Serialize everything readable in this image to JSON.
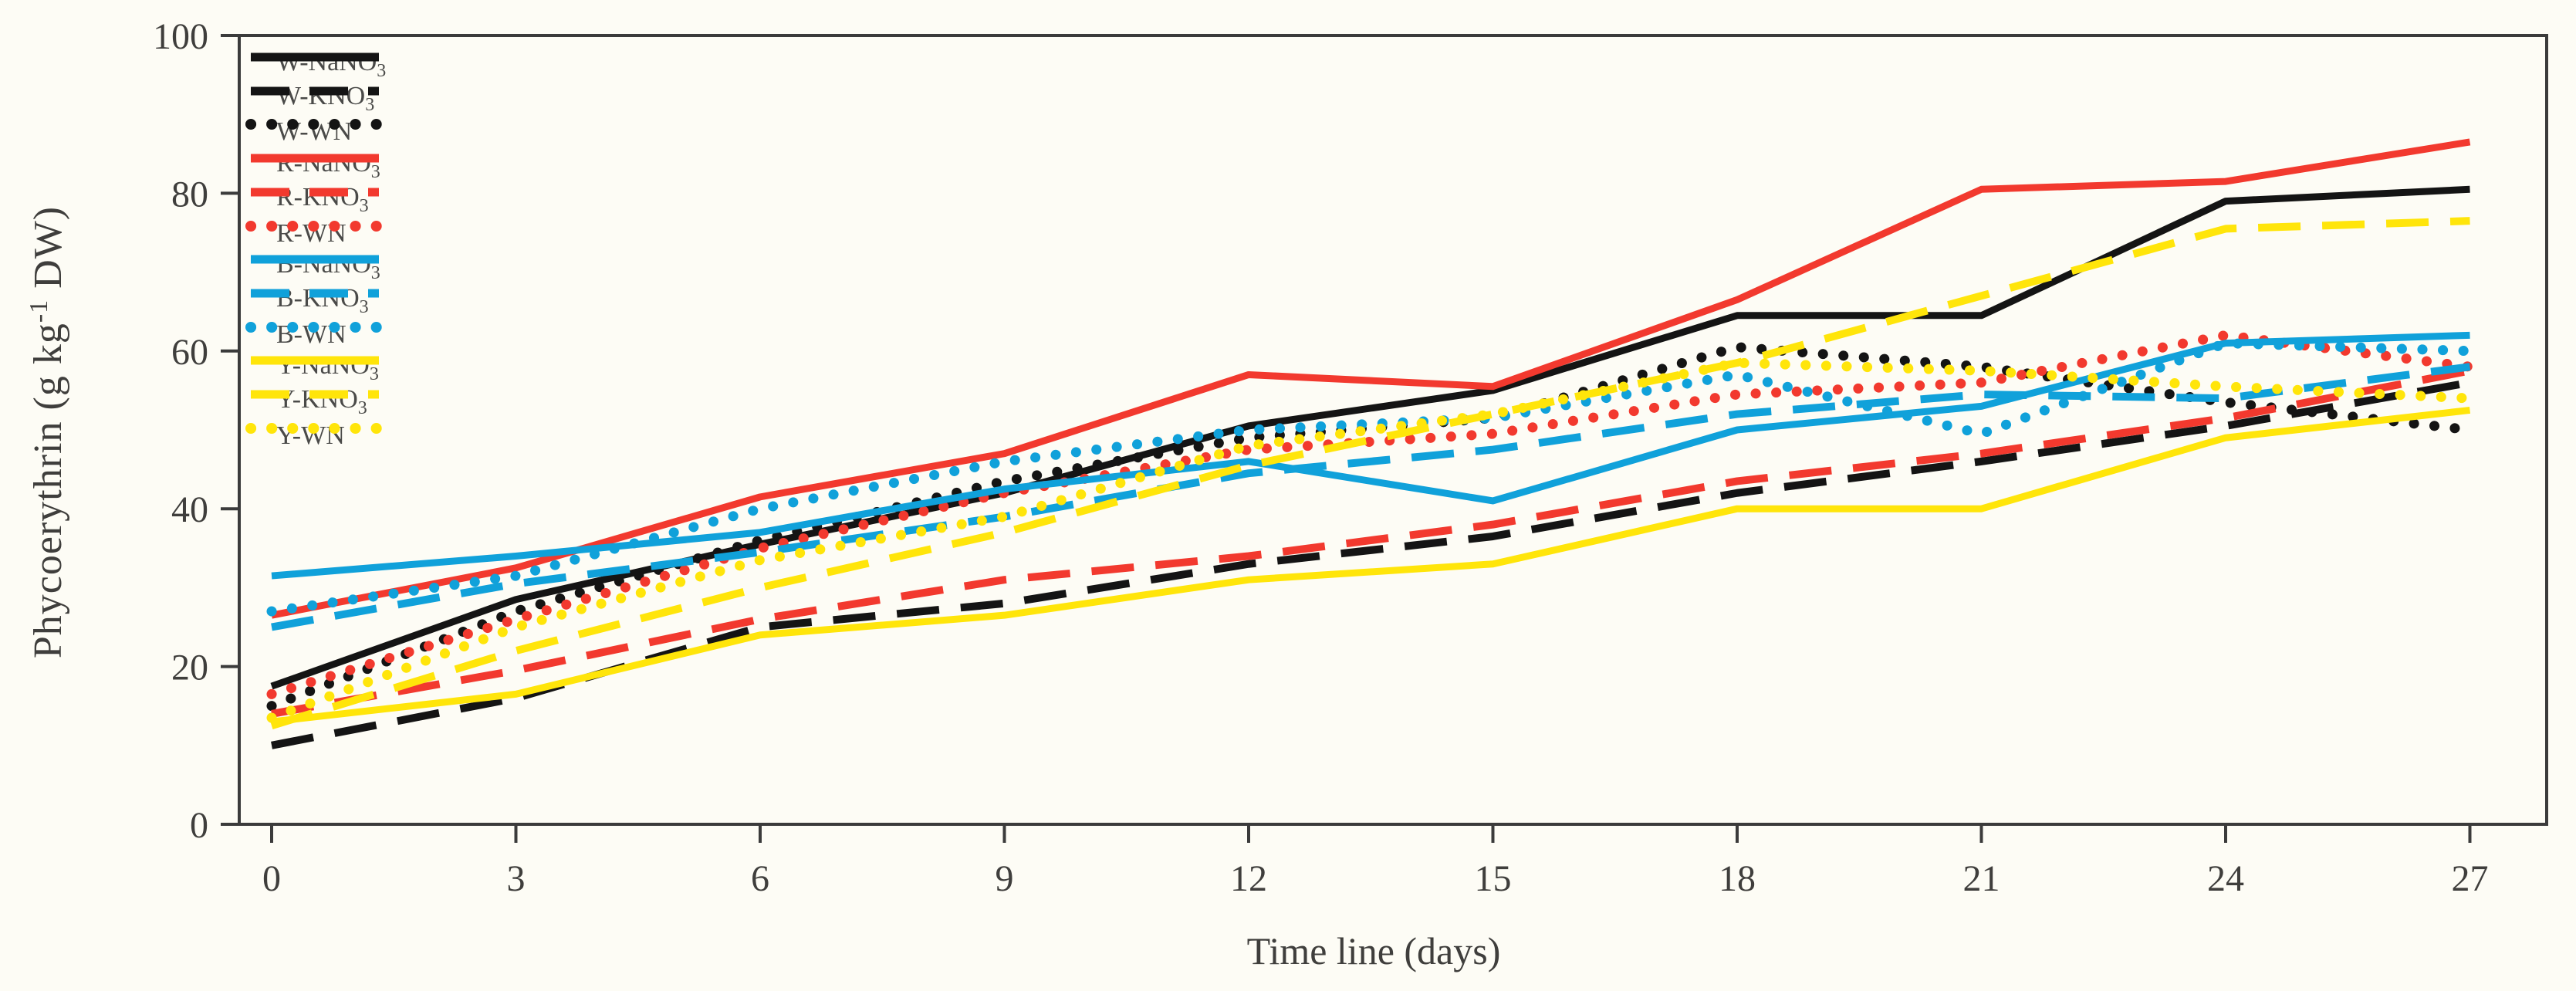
{
  "figure": {
    "background": "#fdfcf5",
    "frame_color": "#3b3b3b"
  },
  "y_axis": {
    "label": "Phycoerythrin  (g kg-1 DW)",
    "ticks": [
      0,
      20,
      40,
      60,
      80,
      100
    ]
  },
  "x_axis": {
    "label": "Time line (days)",
    "ticks": [
      0,
      3,
      6,
      9,
      12,
      15,
      18,
      21,
      24,
      27
    ]
  },
  "chart_data": {
    "type": "line",
    "title": "",
    "xlabel": "Time line (days)",
    "ylabel": "Phycoerythrin (g kg-1 DW)",
    "xlim": [
      0,
      27
    ],
    "ylim": [
      0,
      100
    ],
    "grid": false,
    "legend_position": "inside top-left",
    "x": [
      0,
      3,
      6,
      9,
      12,
      15,
      18,
      21,
      24,
      27
    ],
    "series": [
      {
        "name": "W-NaNO3",
        "color": "#141414",
        "style": "solid",
        "values": [
          17.5,
          28.5,
          35.5,
          42,
          50.5,
          55,
          64.5,
          64.5,
          79,
          80.5
        ]
      },
      {
        "name": "W-KNO3",
        "color": "#141414",
        "style": "dashed",
        "values": [
          10,
          16,
          25,
          28,
          33,
          36.5,
          42,
          46,
          50.5,
          56
        ]
      },
      {
        "name": "W-WN",
        "color": "#141414",
        "style": "dotted",
        "values": [
          15,
          27,
          36,
          43.5,
          49,
          51.5,
          60.5,
          58,
          53.5,
          50
        ]
      },
      {
        "name": "R-NaNO3",
        "color": "#f2392e",
        "style": "solid",
        "values": [
          26.5,
          32.5,
          41.5,
          47,
          57,
          55.5,
          66.5,
          80.5,
          81.5,
          86.5
        ]
      },
      {
        "name": "R-KNO3",
        "color": "#f2392e",
        "style": "dashed",
        "values": [
          14,
          19.5,
          26,
          31,
          34,
          38,
          43.5,
          47,
          51.5,
          57.5
        ]
      },
      {
        "name": "R-WN",
        "color": "#f2392e",
        "style": "dotted",
        "values": [
          16.5,
          26,
          35,
          42,
          47.5,
          49.5,
          54.5,
          56,
          62,
          58
        ]
      },
      {
        "name": "B-NaNO3",
        "color": "#10a1da",
        "style": "solid",
        "values": [
          31.5,
          34,
          37,
          42.5,
          46,
          41,
          50,
          53,
          61,
          62
        ]
      },
      {
        "name": "B-KNO3",
        "color": "#10a1da",
        "style": "dashed",
        "values": [
          25,
          30.5,
          34.5,
          39,
          44.5,
          47.5,
          52,
          54.5,
          54,
          58
        ]
      },
      {
        "name": "B-WN",
        "color": "#10a1da",
        "style": "dotted",
        "values": [
          27,
          31.5,
          40,
          46,
          50,
          51.5,
          57,
          49.5,
          61,
          60
        ]
      },
      {
        "name": "Y-NaNO3",
        "color": "#ffe50a",
        "style": "solid",
        "values": [
          13,
          16.5,
          24,
          26.5,
          31,
          33,
          40,
          40,
          49,
          52.5
        ]
      },
      {
        "name": "Y-KNO3",
        "color": "#ffe50a",
        "style": "dashed",
        "values": [
          12.5,
          22,
          30,
          37,
          45.5,
          52,
          58.5,
          67,
          75.5,
          76.5
        ]
      },
      {
        "name": "Y-WN",
        "color": "#ffe50a",
        "style": "dotted",
        "values": [
          13.5,
          25,
          33.5,
          39,
          48,
          52,
          58.5,
          57.5,
          55.5,
          54
        ]
      }
    ]
  }
}
